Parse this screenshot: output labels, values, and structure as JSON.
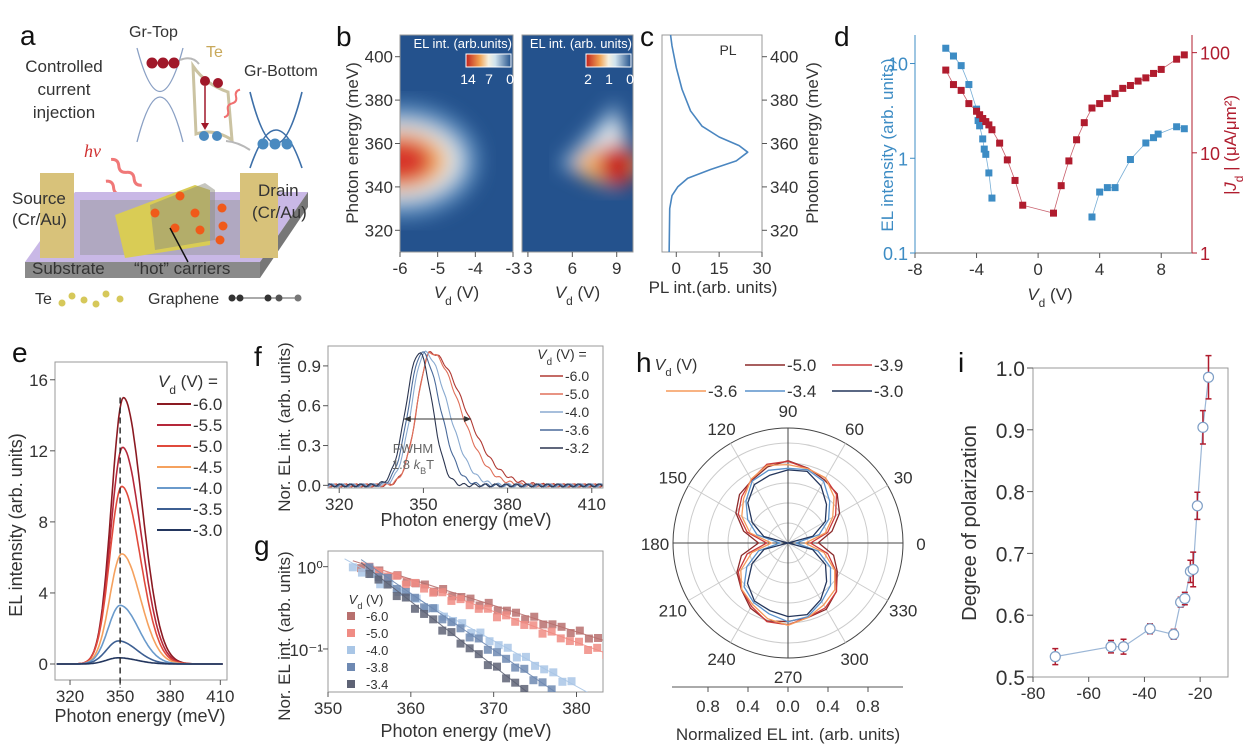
{
  "panel_labels": [
    "a",
    "b",
    "c",
    "d",
    "e",
    "f",
    "g",
    "h",
    "i"
  ],
  "panel_a": {
    "title_lines": [
      "Controlled",
      "current",
      "injection"
    ],
    "gr_top": "Gr-Top",
    "te": "Te",
    "gr_bottom": "Gr-Bottom",
    "hv": "hv",
    "source": [
      "Source",
      "(Cr/Au)"
    ],
    "drain": [
      "Drain",
      "(Cr/Au)"
    ],
    "substrate": "Substrate",
    "hot_carriers": "“hot” carriers",
    "legend_te": "Te",
    "legend_graphene": "Graphene",
    "colors": {
      "electron": "#a0182a",
      "hole": "#4a8ac0",
      "te": "#d9cc55",
      "substrate": "#c9b8e6",
      "electrode": "#d8c27a",
      "carrier": "#f05a1a"
    }
  },
  "chart_data": [
    {
      "type": "heatmap",
      "colorbar_title": "EL int. (arb.units)",
      "colorbar_ticks": [
        "14",
        "7",
        "0"
      ],
      "x_var": "V",
      "x_sub": "d",
      "x_unit": "(V)",
      "ylabel": "Photon energy (meV)",
      "xlim": [
        -6,
        -3
      ],
      "ylim": [
        310,
        410
      ],
      "xticks": [
        -6,
        -5,
        -4,
        -3
      ],
      "yticks": [
        320,
        340,
        360,
        380,
        400
      ],
      "peak": {
        "x": -6,
        "y": 352,
        "value": 14
      }
    },
    {
      "type": "heatmap",
      "colorbar_title": "EL int. (arb. units)",
      "colorbar_ticks": [
        "2",
        "1",
        "0"
      ],
      "x_var": "V",
      "x_sub": "d",
      "x_unit": "(V)",
      "xlim": [
        2.6,
        10.1
      ],
      "ylim": [
        310,
        410
      ],
      "xticks": [
        3,
        6,
        9
      ],
      "peak": {
        "x": 9,
        "y": 350,
        "value": 2
      }
    },
    {
      "type": "line",
      "legend": "PL",
      "xlabel": "PL int.(arb. units)",
      "ylabel": "Photon energy (meV)",
      "xlim": [
        -5,
        30
      ],
      "ylim": [
        310,
        410
      ],
      "xticks": [
        0,
        15,
        30
      ],
      "yticks": [
        320,
        340,
        360,
        380,
        400
      ],
      "energy": [
        310,
        330,
        336,
        340,
        344,
        348,
        352,
        356,
        359,
        363,
        368,
        375,
        385,
        395,
        405,
        410
      ],
      "intensity": [
        -2.5,
        -2.3,
        -1.5,
        0.5,
        4,
        12,
        21,
        25,
        22,
        15,
        9,
        5,
        2,
        0,
        -1.5,
        -2
      ]
    },
    {
      "type": "scatter",
      "x_var": "V",
      "x_sub": "d",
      "x_unit": "(V)",
      "ylabel_left": "EL intensity (arb. units)",
      "ylabel_right_var": "|J",
      "ylabel_right_sub": "d",
      "ylabel_right_unit": "| (μA/μm²)",
      "xlim": [
        -8,
        10
      ],
      "xticks": [
        -8,
        -4,
        0,
        4,
        8
      ],
      "ylim_left": [
        0.1,
        20
      ],
      "yticks_left": [
        "0.1",
        "1",
        "10"
      ],
      "ylim_right": [
        1,
        150
      ],
      "yticks_right": [
        "1",
        "10",
        "100"
      ],
      "y_scale": "log",
      "colors": {
        "el": "#3d8cc4",
        "current": "#b01c2e"
      },
      "el_intensity": {
        "x": [
          -6,
          -5.5,
          -5,
          -4.5,
          -4,
          -3.9,
          -3.8,
          -3.6,
          -3.5,
          -3.4,
          -3.2,
          -3,
          3.5,
          4,
          4.5,
          5,
          6,
          7,
          7.5,
          7.8,
          9,
          9.5
        ],
        "y": [
          14.5,
          12,
          9.5,
          6,
          3.3,
          2.5,
          2.2,
          1.6,
          1.25,
          1.1,
          0.7,
          0.38,
          0.24,
          0.44,
          0.49,
          0.49,
          0.97,
          1.45,
          1.65,
          1.8,
          2.15,
          2.05
        ]
      },
      "current_density": {
        "x": [
          -6,
          -5.5,
          -5,
          -4.5,
          -4,
          -3.8,
          -3.6,
          -3.4,
          -3.2,
          -3,
          -2.5,
          -2,
          -1.5,
          -1,
          1,
          1.5,
          2,
          2.5,
          3,
          3.5,
          4,
          4.5,
          5,
          5.5,
          6,
          6.5,
          7,
          7.5,
          8,
          9,
          9.5
        ],
        "y": [
          67,
          48,
          42,
          31,
          26,
          24,
          22,
          20.5,
          19,
          17,
          12.5,
          8.5,
          5.3,
          3,
          2.5,
          4.7,
          8.3,
          13.5,
          20,
          28,
          31,
          35,
          39,
          44,
          47,
          52,
          56,
          62,
          68,
          86,
          95
        ]
      }
    },
    {
      "type": "line",
      "legend_title_var": "V",
      "legend_title_sub": "d",
      "legend_title_unit": "(V) =",
      "xlabel": "Photon energy (meV)",
      "ylabel": "EL intensity (arb. units)",
      "xlim": [
        311,
        414
      ],
      "ylim": [
        -0.9,
        17
      ],
      "xticks": [
        320,
        350,
        380,
        410
      ],
      "yticks": [
        0,
        4,
        8,
        12,
        16
      ],
      "reference_line": 350,
      "series": [
        {
          "name": "-6.0",
          "color": "#8b1a22",
          "peak_energy": 352,
          "peak_intensity": 15
        },
        {
          "name": "-5.5",
          "color": "#b5283a",
          "peak_energy": 351.5,
          "peak_intensity": 12.2
        },
        {
          "name": "-5.0",
          "color": "#e04a3c",
          "peak_energy": 351,
          "peak_intensity": 10
        },
        {
          "name": "-4.5",
          "color": "#f5a15e",
          "peak_energy": 351,
          "peak_intensity": 6.2
        },
        {
          "name": "-4.0",
          "color": "#6a9acb",
          "peak_energy": 350,
          "peak_intensity": 3.3
        },
        {
          "name": "-3.5",
          "color": "#3d5f92",
          "peak_energy": 349,
          "peak_intensity": 1.3
        },
        {
          "name": "-3.0",
          "color": "#23365e",
          "peak_energy": 349,
          "peak_intensity": 0.35
        }
      ]
    },
    {
      "type": "line",
      "legend_title_var": "V",
      "legend_title_sub": "d",
      "legend_title_unit": "(V) =",
      "xlabel": "Photon energy (meV)",
      "ylabel": "Nor. EL int. (arb. units)",
      "xlim": [
        316,
        414
      ],
      "ylim": [
        -0.02,
        1.05
      ],
      "xticks": [
        320,
        350,
        380,
        410
      ],
      "yticks": [
        "0.0",
        "0.3",
        "0.6",
        "0.9"
      ],
      "annotation": {
        "line1": "FWHM",
        "line2_pre": "1.8 ",
        "line2_var": "k",
        "line2_sub": "B",
        "line2_post": "T",
        "from": 343,
        "to": 367,
        "level": 0.5
      },
      "series": [
        {
          "name": "-6.0",
          "color": "#b03a34",
          "peak_energy": 352.5
        },
        {
          "name": "-5.0",
          "color": "#e0705a",
          "peak_energy": 352.5
        },
        {
          "name": "-4.0",
          "color": "#8aaad0",
          "peak_energy": 350.5
        },
        {
          "name": "-3.6",
          "color": "#4a6a9a",
          "peak_energy": 349.5
        },
        {
          "name": "-3.2",
          "color": "#2b3550",
          "peak_energy": 348.5
        }
      ]
    },
    {
      "type": "scatter",
      "legend_title_var": "V",
      "legend_title_sub": "d",
      "legend_title_unit": "(V)",
      "xlabel": "Photon energy (meV)",
      "ylabel": "Nor. EL int. (arb. units)",
      "xlim": [
        350,
        383.2
      ],
      "ylim": [
        0.03,
        1.55
      ],
      "y_scale": "log",
      "xticks": [
        350,
        360,
        370,
        380
      ],
      "yticks": [
        "10⁰",
        "10⁻¹"
      ],
      "series": [
        {
          "name": "-6.0",
          "color": "#b8706e",
          "x_range": [
            354,
            384
          ],
          "y_range": [
            1.0,
            0.12
          ]
        },
        {
          "name": "-5.0",
          "color": "#f08c84",
          "x_range": [
            355,
            384
          ],
          "y_range": [
            0.95,
            0.085
          ]
        },
        {
          "name": "-4.0",
          "color": "#a9c6e6",
          "x_range": [
            353,
            380
          ],
          "y_range": [
            1.0,
            0.035
          ]
        },
        {
          "name": "-3.8",
          "color": "#6e89b2",
          "x_range": [
            355,
            377
          ],
          "y_range": [
            0.95,
            0.032
          ]
        },
        {
          "name": "-3.4",
          "color": "#5e6375",
          "x_range": [
            355,
            374
          ],
          "y_range": [
            0.85,
            0.03
          ]
        }
      ]
    },
    {
      "type": "polar",
      "legend_title_var": "V",
      "legend_title_sub": "d",
      "legend_title_unit": "(V)",
      "xlabel": "Normalized EL int. (arb. units)",
      "angle_ticks": [
        "0",
        "30",
        "60",
        "90",
        "120",
        "150",
        "180",
        "210",
        "240",
        "270",
        "300",
        "330"
      ],
      "radial_ticks": [
        "0.8",
        "0.4",
        "0.0",
        "0.4",
        "0.8"
      ],
      "series": [
        {
          "name": "-5.0",
          "color": "#8b2a2a",
          "r_max": 0.8,
          "r_min": 0.3
        },
        {
          "name": "-3.9",
          "color": "#cc3b3b",
          "r_max": 0.81,
          "r_min": 0.22
        },
        {
          "name": "-3.6",
          "color": "#f59a5a",
          "r_max": 0.8,
          "r_min": 0.17
        },
        {
          "name": "-3.4",
          "color": "#5a92cc",
          "r_max": 0.77,
          "r_min": 0.08
        },
        {
          "name": "-3.0",
          "color": "#24365c",
          "r_max": 0.74,
          "r_min": 0.0
        }
      ]
    },
    {
      "type": "scatter",
      "ylabel": "Degree of polarization",
      "xlim": [
        -80,
        -10
      ],
      "ylim": [
        0.5,
        1.0
      ],
      "xticks": [
        -80,
        -60,
        -40,
        -20
      ],
      "yticks": [
        "0.5",
        "0.6",
        "0.7",
        "0.8",
        "0.9",
        "1.0"
      ],
      "colors": {
        "line": "#9bb6d6",
        "errorbar": "#b01c2e"
      },
      "x": [
        -72,
        -52,
        -47.5,
        -38,
        -29.5,
        -27,
        -25.5,
        -23.5,
        -22.5,
        -21,
        -19,
        -17
      ],
      "y": [
        0.533,
        0.549,
        0.549,
        0.578,
        0.569,
        0.621,
        0.627,
        0.671,
        0.674,
        0.777,
        0.904,
        0.985
      ],
      "error": [
        0.013,
        0.01,
        0.012,
        0.008,
        0.008,
        0.008,
        0.01,
        0.018,
        0.028,
        0.022,
        0.027,
        0.035
      ]
    }
  ]
}
